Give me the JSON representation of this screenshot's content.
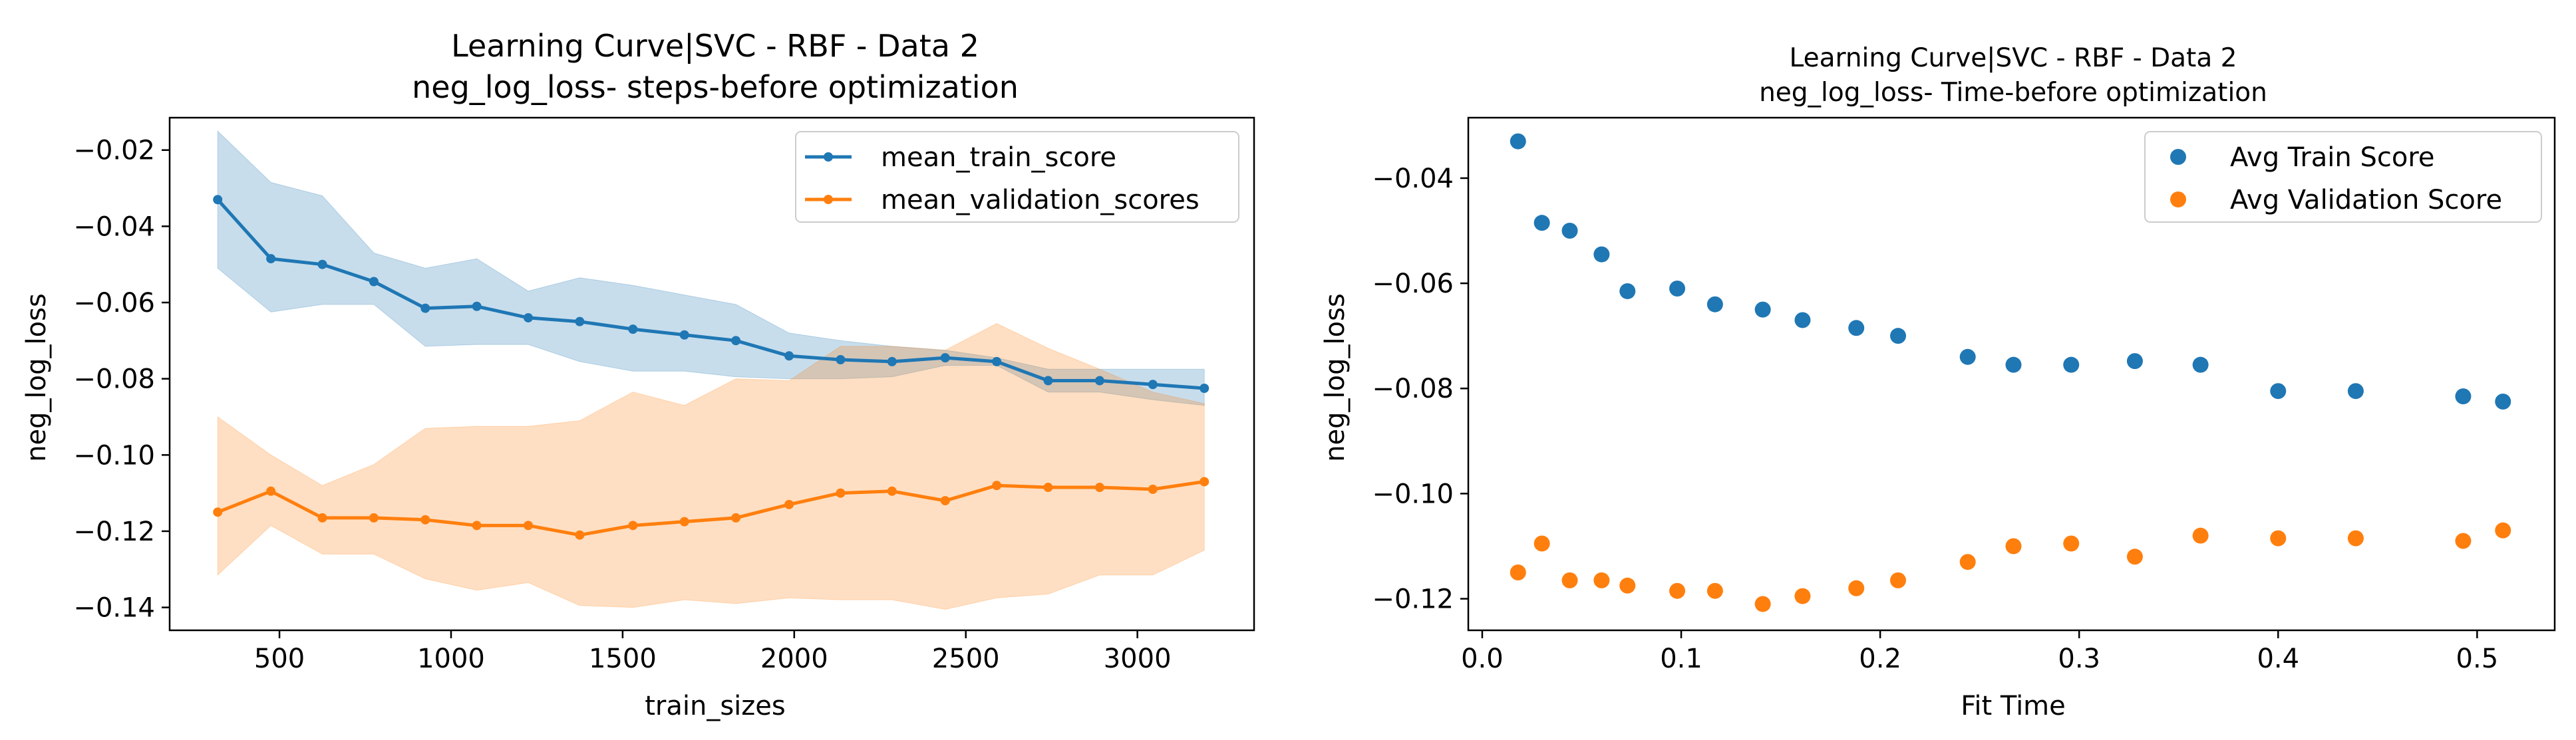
{
  "chart_data": [
    {
      "type": "line",
      "title_line1": "Learning Curve|SVC - RBF - Data 2",
      "title_line2": "neg_log_loss- steps-before optimization",
      "xlabel": "train_sizes",
      "ylabel": "neg_log_loss",
      "xlim": [
        180,
        3340
      ],
      "ylim": [
        -0.146,
        -0.0115
      ],
      "xticks": [
        500,
        1000,
        1500,
        2000,
        2500,
        3000
      ],
      "yticks": [
        -0.14,
        -0.12,
        -0.1,
        -0.08,
        -0.06,
        -0.04,
        -0.02
      ],
      "legend_position": "upper right",
      "x": [
        320,
        475,
        625,
        775,
        925,
        1075,
        1225,
        1375,
        1530,
        1680,
        1830,
        1985,
        2135,
        2285,
        2440,
        2590,
        2740,
        2890,
        3045,
        3195
      ],
      "series": [
        {
          "name": "mean_train_score",
          "color": "#1f77b4",
          "values": [
            -0.033,
            -0.0485,
            -0.05,
            -0.0545,
            -0.0615,
            -0.061,
            -0.064,
            -0.065,
            -0.067,
            -0.0685,
            -0.07,
            -0.074,
            -0.075,
            -0.0755,
            -0.0745,
            -0.0755,
            -0.0805,
            -0.0805,
            -0.0815,
            -0.0825
          ],
          "upper": [
            -0.015,
            -0.0285,
            -0.032,
            -0.047,
            -0.051,
            -0.0485,
            -0.057,
            -0.0535,
            -0.0555,
            -0.058,
            -0.0605,
            -0.068,
            -0.07,
            -0.0715,
            -0.0725,
            -0.0745,
            -0.0775,
            -0.0775,
            -0.0775,
            -0.0775
          ],
          "lower": [
            -0.051,
            -0.0625,
            -0.0605,
            -0.0605,
            -0.0715,
            -0.071,
            -0.071,
            -0.0755,
            -0.078,
            -0.078,
            -0.0795,
            -0.08,
            -0.08,
            -0.0795,
            -0.0765,
            -0.0765,
            -0.0835,
            -0.0835,
            -0.0855,
            -0.087
          ]
        },
        {
          "name": "mean_validation_scores",
          "color": "#ff7f0e",
          "values": [
            -0.115,
            -0.1095,
            -0.1165,
            -0.1165,
            -0.117,
            -0.1185,
            -0.1185,
            -0.121,
            -0.1185,
            -0.1175,
            -0.1165,
            -0.113,
            -0.11,
            -0.1095,
            -0.112,
            -0.108,
            -0.1085,
            -0.1085,
            -0.109,
            -0.107
          ],
          "upper": [
            -0.09,
            -0.1,
            -0.108,
            -0.1025,
            -0.093,
            -0.0925,
            -0.0925,
            -0.091,
            -0.0835,
            -0.087,
            -0.08,
            -0.0805,
            -0.0715,
            -0.0715,
            -0.0725,
            -0.0655,
            -0.072,
            -0.0775,
            -0.0835,
            -0.0865
          ],
          "lower": [
            -0.1315,
            -0.1185,
            -0.126,
            -0.126,
            -0.1325,
            -0.1355,
            -0.1335,
            -0.1395,
            -0.14,
            -0.138,
            -0.139,
            -0.1375,
            -0.138,
            -0.138,
            -0.1405,
            -0.1375,
            -0.1365,
            -0.1315,
            -0.1315,
            -0.125
          ]
        }
      ]
    },
    {
      "type": "scatter",
      "title_line1": "Learning Curve|SVC - RBF - Data 2",
      "title_line2": "neg_log_loss- Time-before optimization",
      "xlabel": "Fit Time",
      "ylabel": "neg_log_loss",
      "xlim": [
        -0.007,
        0.539
      ],
      "ylim": [
        -0.126,
        -0.0285
      ],
      "xticks": [
        0.0,
        0.1,
        0.2,
        0.3,
        0.4,
        0.5
      ],
      "xtick_labels": [
        "0.0",
        "0.1",
        "0.2",
        "0.3",
        "0.4",
        "0.5"
      ],
      "yticks": [
        -0.12,
        -0.1,
        -0.08,
        -0.06,
        -0.04
      ],
      "legend_position": "upper right",
      "x": [
        0.018,
        0.03,
        0.044,
        0.06,
        0.073,
        0.098,
        0.117,
        0.141,
        0.161,
        0.188,
        0.209,
        0.244,
        0.267,
        0.296,
        0.328,
        0.361,
        0.4,
        0.439,
        0.493,
        0.513
      ],
      "series": [
        {
          "name": "Avg Train Score",
          "color": "#1f77b4",
          "values": [
            -0.033,
            -0.0485,
            -0.05,
            -0.0545,
            -0.0615,
            -0.061,
            -0.064,
            -0.065,
            -0.067,
            -0.0685,
            -0.07,
            -0.074,
            -0.0755,
            -0.0755,
            -0.0748,
            -0.0755,
            -0.0805,
            -0.0805,
            -0.0815,
            -0.0825
          ]
        },
        {
          "name": "Avg Validation Score",
          "color": "#ff7f0e",
          "values": [
            -0.115,
            -0.1095,
            -0.1165,
            -0.1165,
            -0.1175,
            -0.1185,
            -0.1185,
            -0.121,
            -0.1195,
            -0.118,
            -0.1165,
            -0.113,
            -0.11,
            -0.1095,
            -0.112,
            -0.108,
            -0.1085,
            -0.1085,
            -0.109,
            -0.107
          ]
        }
      ]
    }
  ]
}
